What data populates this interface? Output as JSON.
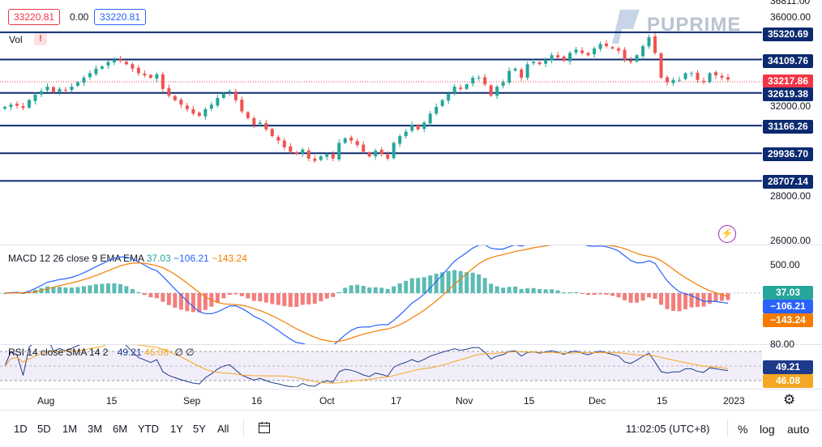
{
  "header": {
    "open_value": "33220.81",
    "change": "0.00",
    "close_value": "33220.81",
    "vol_label": "Vol",
    "warning": "!",
    "brand": "PUPRIME"
  },
  "price_axis": {
    "ticks": [
      "36000.00",
      "32000.00",
      "28000.00",
      "26000.00"
    ],
    "cut_top_label": "36811.00"
  },
  "levels": [
    {
      "label": "35320.69",
      "value": 35320.69
    },
    {
      "label": "34109.76",
      "value": 34109.76
    },
    {
      "label": "32619.38",
      "value": 32619.38
    },
    {
      "label": "31166.26",
      "value": 31166.26
    },
    {
      "label": "29936.70",
      "value": 29936.7
    },
    {
      "label": "28707.14",
      "value": 28707.14
    }
  ],
  "last_price": {
    "label": "33217.86",
    "value": 33217.86
  },
  "macd": {
    "title": "MACD 12 26 close 9 EMA EMA",
    "hist": "37.03",
    "macd": "−106.21",
    "signal": "−143.24",
    "axis_tick": "500.00"
  },
  "rsi": {
    "title": "RSI 14 close SMA 14 2",
    "rsi": "49.21",
    "sma": "46.08",
    "extra": "∅ ∅",
    "axis_tick": "80.00"
  },
  "time_axis": [
    "Aug",
    "15",
    "Sep",
    "16",
    "Oct",
    "17",
    "Nov",
    "15",
    "Dec",
    "15",
    "2023"
  ],
  "timeframes": [
    "1D",
    "5D",
    "1M",
    "3M",
    "6M",
    "YTD",
    "1Y",
    "5Y",
    "All"
  ],
  "clock": "11:02:05 (UTC+8)",
  "scale_options": [
    "%",
    "log",
    "auto"
  ],
  "colors": {
    "up": "#26a69a",
    "down": "#ef5350",
    "level": "#0b2a6f",
    "macd": "#2962ff",
    "signal": "#f57c00",
    "rsi": "#1e3a8a",
    "rsi_sma": "#f5a623",
    "last": "#f23645"
  },
  "chart_data": {
    "type": "candlestick",
    "title": "",
    "price_levels": [
      35320.69,
      34109.76,
      32619.38,
      31166.26,
      29936.7,
      28707.14
    ],
    "last_price": 33217.86,
    "y_ticks": [
      36000,
      32000,
      28000,
      26000
    ],
    "x_ticks": [
      "Aug",
      "15",
      "Sep",
      "16",
      "Oct",
      "17",
      "Nov",
      "15",
      "Dec",
      "15",
      "2023"
    ],
    "close_series": [
      32000,
      32100,
      32050,
      31950,
      32300,
      32550,
      32700,
      32900,
      32650,
      32800,
      32750,
      32900,
      33100,
      33300,
      33500,
      33700,
      33800,
      34000,
      34100,
      34050,
      33900,
      33700,
      33500,
      33400,
      33300,
      33450,
      32800,
      32500,
      32300,
      32100,
      31900,
      31700,
      31600,
      31900,
      32100,
      32400,
      32600,
      32700,
      32300,
      31800,
      31500,
      31200,
      31300,
      31000,
      30700,
      30500,
      30200,
      30000,
      29900,
      30100,
      29700,
      29600,
      29800,
      29900,
      29700,
      30400,
      30600,
      30500,
      30300,
      30000,
      29800,
      30050,
      29900,
      29700,
      30400,
      30700,
      30900,
      31200,
      31000,
      31300,
      31700,
      32000,
      32300,
      32600,
      32900,
      32800,
      33000,
      33300,
      33300,
      33000,
      32500,
      32900,
      33100,
      33600,
      33700,
      33300,
      33900,
      34000,
      33900,
      34100,
      34300,
      34200,
      34050,
      34400,
      34550,
      34400,
      34300,
      34600,
      34800,
      34700,
      34600,
      34500,
      34100,
      34000,
      34300,
      34700,
      35100,
      34400,
      33300,
      33100,
      33200,
      33200,
      33500,
      33500,
      33200,
      33100,
      33500,
      33400,
      33300,
      33218
    ]
  }
}
